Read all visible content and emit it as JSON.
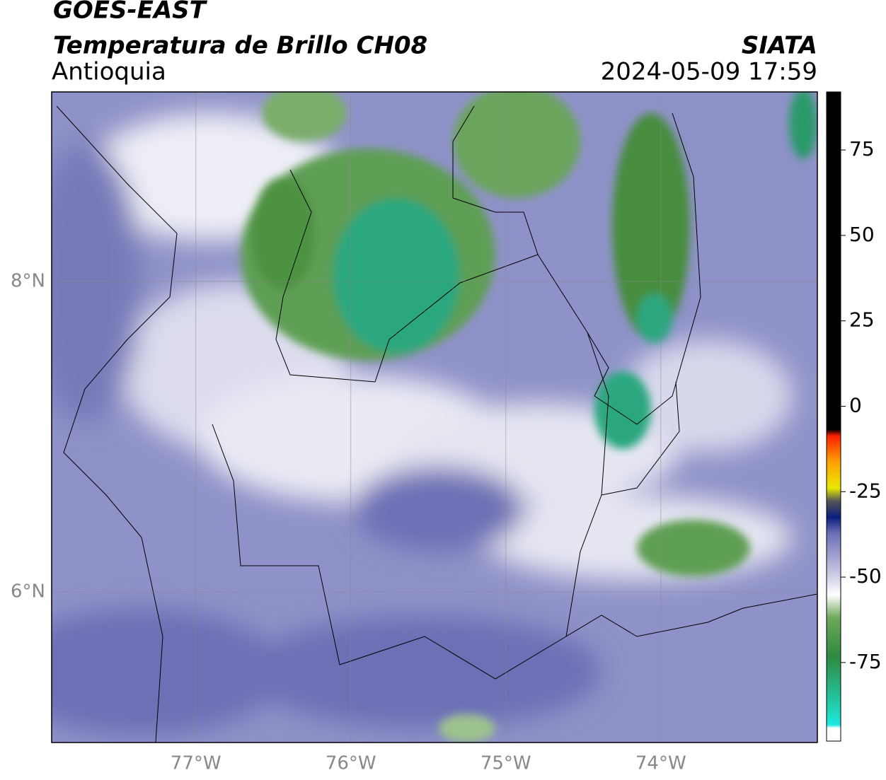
{
  "header": {
    "satellite": "GOES-EAST",
    "title": "Temperatura de Brillo CH08",
    "region": "Antioquia",
    "source": "SIATA",
    "datetime": "2024-05-09 17:59"
  },
  "map": {
    "xlim": [
      -77.93,
      -72.99
    ],
    "ylim": [
      5.03,
      9.22
    ],
    "xticks": [
      {
        "value": -77,
        "label": "77°W"
      },
      {
        "value": -76,
        "label": "76°W"
      },
      {
        "value": -75,
        "label": "75°W"
      },
      {
        "value": -74,
        "label": "74°W"
      }
    ],
    "yticks": [
      {
        "value": 6,
        "label": "6°N"
      },
      {
        "value": 8,
        "label": "8°N"
      }
    ],
    "grid": true
  },
  "colorbar": {
    "lim": [
      -98,
      92
    ],
    "ticks": [
      75,
      50,
      25,
      0,
      -25,
      -50,
      -75
    ]
  }
}
